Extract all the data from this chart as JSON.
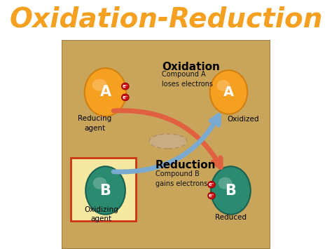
{
  "title": "Oxidation-Reduction",
  "title_color": "#F5A020",
  "bg_color": "#FFFFFF",
  "diagram_bg": "#C8A55A",
  "circle_A_color": "#F5A020",
  "circle_A_edge": "#D08010",
  "circle_B_color": "#2A8B70",
  "circle_B_edge": "#1A6050",
  "electron_color": "#CC1111",
  "electron_edge": "#990000",
  "arrow_red_color": "#E06040",
  "arrow_blue_color": "#7AAAD0",
  "box_color": "#F5E8A0",
  "box_border_color": "#CC3311",
  "oxidation_label": "Oxidation",
  "oxidation_sub": "Compound A\nloses electrons",
  "reduction_label": "Reduction",
  "reduction_sub": "Compound B\ngains electrons",
  "reducing_agent": "Reducing\nagent",
  "oxidizing_agent": "Oxidizing\nagent",
  "oxidized_label": "Oxidized",
  "reduced_label": "Reduced"
}
